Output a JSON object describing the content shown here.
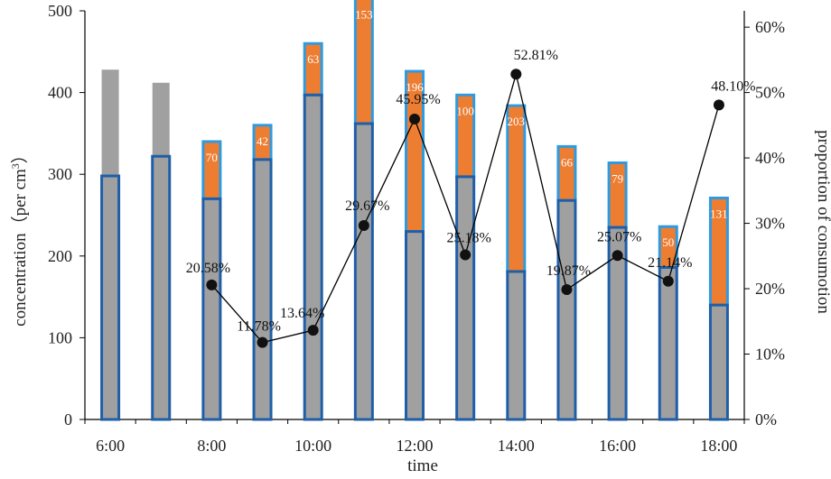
{
  "chart_data": {
    "type": "bar",
    "xlabel": "time",
    "ylabel": "concentration（per cm3）",
    "ylabel_main": "concentration（per cm",
    "ylabel_sup": "3",
    "ylabel_close": "）",
    "ylabel2": "proportion of consumotion",
    "ylim": [
      0,
      500
    ],
    "y2lim": [
      0,
      0.625
    ],
    "y_ticks": [
      "0",
      "100",
      "200",
      "300",
      "400",
      "500"
    ],
    "y2_ticks": [
      "0%",
      "10%",
      "20%",
      "30%",
      "40%",
      "50%",
      "60%"
    ],
    "categories": [
      "6:00",
      "7:00",
      "8:00",
      "9:00",
      "10:00",
      "11:00",
      "12:00",
      "13:00",
      "14:00",
      "15:00",
      "16:00",
      "17:00",
      "18:00"
    ],
    "x_tick_labels": [
      "6:00",
      "",
      "8:00",
      "",
      "10:00",
      "",
      "12:00",
      "",
      "14:00",
      "",
      "16:00",
      "",
      "18:00"
    ],
    "series": [
      {
        "role": "base",
        "values": [
          298,
          322,
          270,
          318,
          397,
          362,
          230,
          297,
          181,
          268,
          235,
          186,
          140
        ],
        "color": "#a0a0a0"
      },
      {
        "role": "consumed",
        "values": [
          null,
          null,
          70,
          42,
          63,
          153,
          196,
          100,
          203,
          66,
          79,
          50,
          131
        ],
        "labels": [
          "",
          "",
          "70",
          "42",
          "63",
          "153",
          "196",
          "100",
          "203",
          "66",
          "79",
          "50",
          "131"
        ],
        "color": "#ed7d31"
      },
      {
        "role": "no-consumption-top",
        "values": [
          130,
          90,
          null,
          null,
          null,
          null,
          null,
          null,
          null,
          null,
          null,
          null,
          null
        ],
        "color": "#a0a0a0"
      },
      {
        "role": "proportion",
        "type": "line",
        "axis": "y2",
        "values": [
          null,
          null,
          0.2058,
          0.1178,
          0.1364,
          0.2967,
          0.4595,
          0.2518,
          0.5281,
          0.1987,
          0.2507,
          0.2114,
          0.481
        ],
        "labels": [
          "",
          "",
          "20.58%",
          "11.78%",
          "13.64%",
          "29.67%",
          "45.95%",
          "25.18%",
          "52.81%",
          "19.87%",
          "25.07%",
          "21.14%",
          "48.10%"
        ],
        "color": "#000000"
      }
    ],
    "colors": {
      "bar_fill": "#a0a0a0",
      "bar_outline": "#1f5fa8",
      "consumed_outline": "#2f9ae0",
      "consumed_fill": "#ed7d31",
      "line": "#000000"
    }
  }
}
